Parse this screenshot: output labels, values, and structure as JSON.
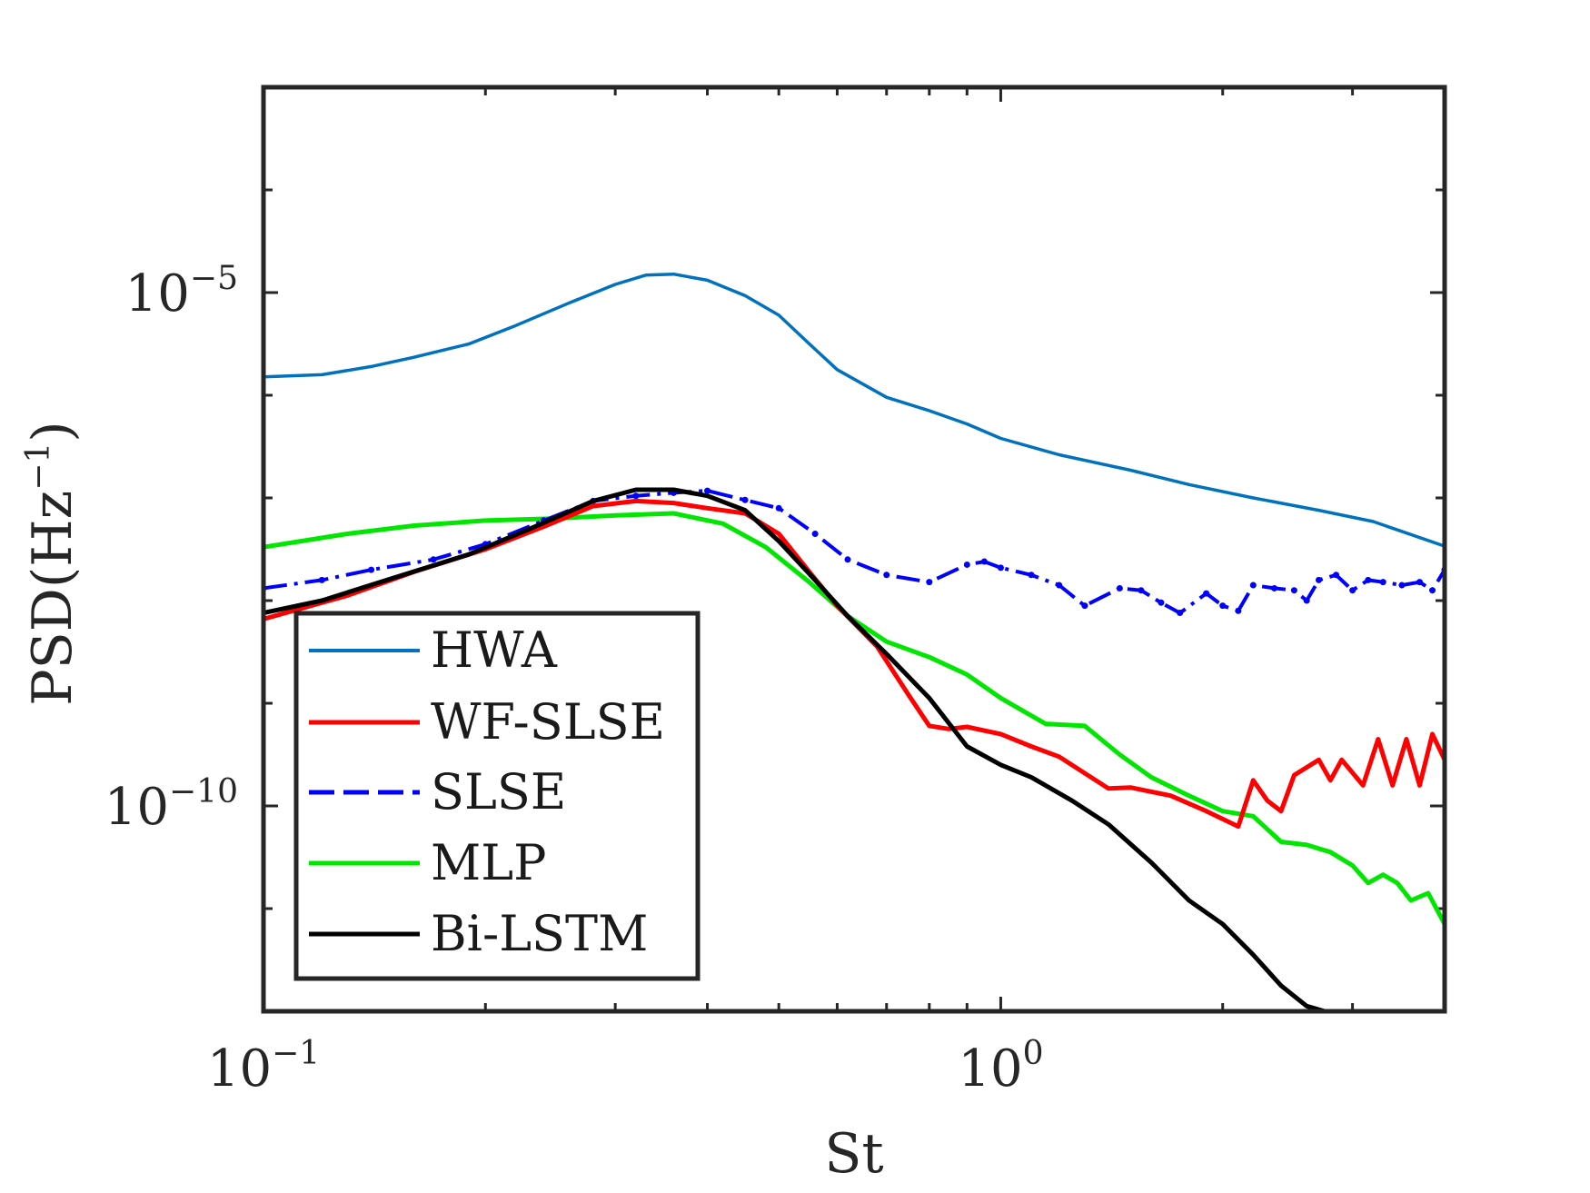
{
  "chart_data": {
    "type": "line",
    "title": "",
    "xlabel": "St",
    "ylabel": "PSD(Hz",
    "ylabel_exp": "−1",
    "ylabel_close": ")",
    "xscale": "log",
    "yscale": "log",
    "xlim": [
      0.1,
      4.0
    ],
    "ylim_log10": [
      -12,
      -3
    ],
    "x_ticks": [
      {
        "base": "10",
        "exp": "−1",
        "value": 0.1
      },
      {
        "base": "10",
        "exp": "0",
        "value": 1
      }
    ],
    "y_ticks": [
      {
        "base": "10",
        "exp": "−5",
        "log10": -5
      },
      {
        "base": "10",
        "exp": "−10",
        "log10": -10
      }
    ],
    "legend_location": "lower-left",
    "series": [
      {
        "name": "HWA",
        "color": "#0072BD",
        "style": "solid",
        "x": [
          0.1,
          0.12,
          0.14,
          0.16,
          0.19,
          0.22,
          0.26,
          0.3,
          0.33,
          0.36,
          0.4,
          0.45,
          0.5,
          0.55,
          0.6,
          0.7,
          0.8,
          0.9,
          1.0,
          1.2,
          1.5,
          1.8,
          2.2,
          2.7,
          3.2,
          4.0
        ],
        "y_log10": [
          -5.82,
          -5.8,
          -5.72,
          -5.63,
          -5.5,
          -5.32,
          -5.1,
          -4.92,
          -4.83,
          -4.82,
          -4.88,
          -5.03,
          -5.22,
          -5.5,
          -5.75,
          -6.02,
          -6.15,
          -6.28,
          -6.42,
          -6.58,
          -6.73,
          -6.87,
          -7.0,
          -7.12,
          -7.23,
          -7.47
        ]
      },
      {
        "name": "WF-SLSE",
        "color": "#FF0000",
        "style": "solid",
        "x": [
          0.1,
          0.13,
          0.16,
          0.2,
          0.24,
          0.28,
          0.32,
          0.36,
          0.4,
          0.45,
          0.5,
          0.55,
          0.6,
          0.68,
          0.75,
          0.8,
          0.85,
          0.9,
          1.0,
          1.1,
          1.2,
          1.4,
          1.5,
          1.7,
          1.9,
          2.1,
          2.2,
          2.3,
          2.4,
          2.5,
          2.7,
          2.8,
          2.9,
          3.1,
          3.25,
          3.4,
          3.55,
          3.7,
          3.85,
          4.0
        ],
        "y_log10": [
          -8.18,
          -7.95,
          -7.72,
          -7.5,
          -7.28,
          -7.08,
          -7.03,
          -7.05,
          -7.1,
          -7.15,
          -7.35,
          -7.72,
          -8.05,
          -8.45,
          -8.92,
          -9.22,
          -9.25,
          -9.23,
          -9.3,
          -9.42,
          -9.52,
          -9.83,
          -9.82,
          -9.9,
          -10.05,
          -10.2,
          -9.75,
          -9.95,
          -10.05,
          -9.7,
          -9.55,
          -9.75,
          -9.55,
          -9.8,
          -9.35,
          -9.8,
          -9.35,
          -9.8,
          -9.3,
          -9.55
        ]
      },
      {
        "name": "SLSE",
        "color": "#0000FF",
        "style": "dashdot",
        "x": [
          0.1,
          0.12,
          0.14,
          0.17,
          0.2,
          0.24,
          0.28,
          0.32,
          0.36,
          0.4,
          0.45,
          0.5,
          0.56,
          0.62,
          0.7,
          0.8,
          0.9,
          0.95,
          1.0,
          1.1,
          1.2,
          1.3,
          1.45,
          1.55,
          1.65,
          1.75,
          1.9,
          2.0,
          2.1,
          2.2,
          2.35,
          2.5,
          2.6,
          2.7,
          2.85,
          3.0,
          3.15,
          3.3,
          3.5,
          3.7,
          3.85,
          4.0
        ],
        "y_log10": [
          -7.88,
          -7.8,
          -7.7,
          -7.6,
          -7.45,
          -7.22,
          -7.03,
          -6.98,
          -6.95,
          -6.93,
          -7.02,
          -7.1,
          -7.35,
          -7.6,
          -7.75,
          -7.82,
          -7.65,
          -7.62,
          -7.68,
          -7.75,
          -7.85,
          -8.05,
          -7.88,
          -7.9,
          -8.02,
          -8.12,
          -7.93,
          -8.05,
          -8.1,
          -7.85,
          -7.88,
          -7.9,
          -8.0,
          -7.8,
          -7.75,
          -7.9,
          -7.8,
          -7.82,
          -7.85,
          -7.82,
          -7.9,
          -7.7
        ]
      },
      {
        "name": "MLP",
        "color": "#00E600",
        "style": "solid",
        "x": [
          0.1,
          0.13,
          0.16,
          0.2,
          0.25,
          0.3,
          0.36,
          0.42,
          0.48,
          0.55,
          0.62,
          0.7,
          0.8,
          0.9,
          1.0,
          1.15,
          1.3,
          1.45,
          1.6,
          1.8,
          2.0,
          2.2,
          2.4,
          2.6,
          2.8,
          3.0,
          3.15,
          3.3,
          3.45,
          3.6,
          3.8,
          4.0
        ],
        "y_log10": [
          -7.48,
          -7.35,
          -7.27,
          -7.22,
          -7.2,
          -7.17,
          -7.15,
          -7.25,
          -7.48,
          -7.82,
          -8.15,
          -8.4,
          -8.55,
          -8.72,
          -8.95,
          -9.2,
          -9.22,
          -9.5,
          -9.72,
          -9.9,
          -10.05,
          -10.1,
          -10.35,
          -10.38,
          -10.45,
          -10.58,
          -10.75,
          -10.67,
          -10.75,
          -10.92,
          -10.85,
          -11.15
        ]
      },
      {
        "name": "Bi-LSTM",
        "color": "#000000",
        "style": "solid",
        "x": [
          0.1,
          0.12,
          0.15,
          0.19,
          0.23,
          0.28,
          0.32,
          0.36,
          0.4,
          0.45,
          0.5,
          0.56,
          0.62,
          0.7,
          0.8,
          0.9,
          1.0,
          1.1,
          1.25,
          1.4,
          1.6,
          1.8,
          2.0,
          2.2,
          2.4,
          2.6,
          2.75,
          2.85
        ],
        "y_log10": [
          -8.12,
          -8.0,
          -7.78,
          -7.55,
          -7.3,
          -7.03,
          -6.92,
          -6.92,
          -6.98,
          -7.12,
          -7.42,
          -7.8,
          -8.15,
          -8.52,
          -8.95,
          -9.42,
          -9.6,
          -9.72,
          -9.95,
          -10.18,
          -10.55,
          -10.92,
          -11.15,
          -11.45,
          -11.75,
          -11.95,
          -12.0,
          -12.0
        ]
      }
    ]
  }
}
